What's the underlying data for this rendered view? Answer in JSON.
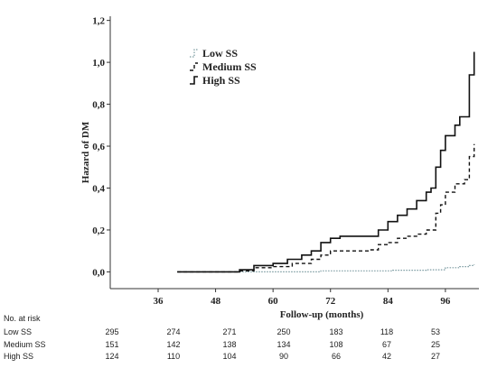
{
  "chart_data": {
    "type": "line",
    "title": "",
    "xlabel": "Follow-up (months)",
    "ylabel": "Hazard of DM",
    "xlim": [
      26,
      103
    ],
    "ylim": [
      -0.08,
      1.22
    ],
    "xticks": [
      36,
      48,
      60,
      72,
      84,
      96
    ],
    "yticks": [
      "0,0",
      "0,2",
      "0,4",
      "0,6",
      "0,8",
      "1,0",
      "1,2"
    ],
    "ytick_values": [
      0.0,
      0.2,
      0.4,
      0.6,
      0.8,
      1.0,
      1.2
    ],
    "legend_position": "top-center",
    "series": [
      {
        "name": "Low SS",
        "style": "dotted",
        "color": "#7a9aa0",
        "points": [
          [
            40,
            0.0
          ],
          [
            55,
            0.0
          ],
          [
            70,
            0.005
          ],
          [
            85,
            0.008
          ],
          [
            92,
            0.01
          ],
          [
            96,
            0.02
          ],
          [
            99,
            0.025
          ],
          [
            101,
            0.03
          ],
          [
            102,
            0.035
          ]
        ]
      },
      {
        "name": "Medium SS",
        "style": "dashed",
        "color": "#111111",
        "points": [
          [
            40,
            0.0
          ],
          [
            50,
            0.0
          ],
          [
            53,
            0.005
          ],
          [
            56,
            0.02
          ],
          [
            60,
            0.025
          ],
          [
            64,
            0.04
          ],
          [
            68,
            0.06
          ],
          [
            70,
            0.08
          ],
          [
            72,
            0.1
          ],
          [
            75,
            0.1
          ],
          [
            80,
            0.105
          ],
          [
            82,
            0.13
          ],
          [
            84,
            0.14
          ],
          [
            86,
            0.16
          ],
          [
            88,
            0.17
          ],
          [
            90,
            0.18
          ],
          [
            92,
            0.2
          ],
          [
            94,
            0.28
          ],
          [
            95,
            0.32
          ],
          [
            96,
            0.38
          ],
          [
            98,
            0.42
          ],
          [
            100,
            0.44
          ],
          [
            101,
            0.55
          ],
          [
            102,
            0.61
          ]
        ]
      },
      {
        "name": "High SS",
        "style": "solid",
        "color": "#111111",
        "points": [
          [
            40,
            0.0
          ],
          [
            50,
            0.0
          ],
          [
            53,
            0.01
          ],
          [
            56,
            0.03
          ],
          [
            60,
            0.04
          ],
          [
            63,
            0.06
          ],
          [
            66,
            0.08
          ],
          [
            68,
            0.1
          ],
          [
            70,
            0.14
          ],
          [
            72,
            0.16
          ],
          [
            74,
            0.17
          ],
          [
            78,
            0.17
          ],
          [
            82,
            0.2
          ],
          [
            84,
            0.24
          ],
          [
            86,
            0.27
          ],
          [
            88,
            0.3
          ],
          [
            90,
            0.34
          ],
          [
            92,
            0.38
          ],
          [
            93,
            0.4
          ],
          [
            94,
            0.5
          ],
          [
            95,
            0.58
          ],
          [
            96,
            0.65
          ],
          [
            98,
            0.7
          ],
          [
            99,
            0.74
          ],
          [
            101,
            0.94
          ],
          [
            102,
            1.05
          ]
        ]
      }
    ]
  },
  "risk_table": {
    "title": "No. at risk",
    "rows": [
      {
        "label": "Low SS",
        "values": [
          "295",
          "274",
          "271",
          "250",
          "183",
          "118",
          "53"
        ]
      },
      {
        "label": "Medium SS",
        "values": [
          "151",
          "142",
          "138",
          "134",
          "108",
          "67",
          "25"
        ]
      },
      {
        "label": "High SS",
        "values": [
          "124",
          "110",
          "104",
          "90",
          "66",
          "42",
          "27"
        ]
      }
    ]
  }
}
